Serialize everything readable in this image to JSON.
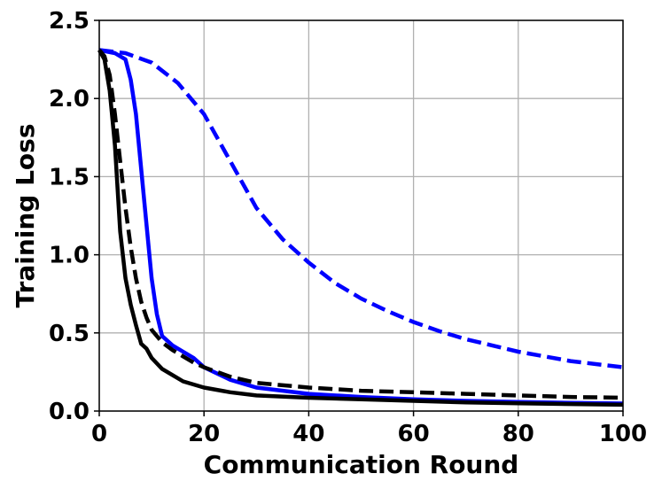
{
  "chart_data": {
    "type": "line",
    "title": "",
    "xlabel": "Communication Round",
    "ylabel": "Training Loss",
    "xlim": [
      0,
      100
    ],
    "ylim": [
      0,
      2.5
    ],
    "xticks": [
      0,
      20,
      40,
      60,
      80,
      100
    ],
    "xtick_labels": [
      "0",
      "20",
      "40",
      "60",
      "80",
      "100"
    ],
    "yticks": [
      0.0,
      0.5,
      1.0,
      1.5,
      2.0,
      2.5
    ],
    "ytick_labels": [
      "0.0",
      "0.5",
      "1.0",
      "1.5",
      "2.0",
      "2.5"
    ],
    "grid": true,
    "series": [
      {
        "color": "#0000ff",
        "style": "dashed",
        "x": [
          0,
          5,
          10,
          15,
          20,
          25,
          30,
          35,
          40,
          45,
          50,
          55,
          60,
          65,
          70,
          75,
          80,
          85,
          90,
          95,
          100
        ],
        "y": [
          2.31,
          2.29,
          2.23,
          2.1,
          1.9,
          1.6,
          1.3,
          1.1,
          0.95,
          0.82,
          0.72,
          0.64,
          0.57,
          0.51,
          0.46,
          0.42,
          0.38,
          0.35,
          0.32,
          0.3,
          0.28
        ]
      },
      {
        "color": "#0000ff",
        "style": "solid",
        "x": [
          0,
          3,
          5,
          6,
          7,
          8,
          9,
          10,
          11,
          12,
          14,
          16,
          18,
          20,
          25,
          30,
          40,
          50,
          60,
          70,
          80,
          90,
          100
        ],
        "y": [
          2.31,
          2.29,
          2.25,
          2.12,
          1.9,
          1.55,
          1.2,
          0.85,
          0.62,
          0.48,
          0.42,
          0.38,
          0.34,
          0.28,
          0.2,
          0.15,
          0.11,
          0.09,
          0.075,
          0.065,
          0.058,
          0.052,
          0.048
        ]
      },
      {
        "color": "#000000",
        "style": "dashed",
        "x": [
          0,
          1,
          2,
          3,
          4,
          5,
          6,
          7,
          8,
          9,
          10,
          12,
          14,
          16,
          18,
          20,
          25,
          30,
          40,
          50,
          60,
          70,
          80,
          90,
          100
        ],
        "y": [
          2.31,
          2.27,
          2.15,
          1.9,
          1.6,
          1.3,
          1.05,
          0.85,
          0.7,
          0.6,
          0.52,
          0.44,
          0.39,
          0.35,
          0.31,
          0.28,
          0.22,
          0.18,
          0.15,
          0.13,
          0.12,
          0.11,
          0.1,
          0.09,
          0.085
        ]
      },
      {
        "color": "#000000",
        "style": "solid",
        "x": [
          0,
          1,
          2,
          3,
          4,
          5,
          6,
          7,
          8,
          9,
          10,
          12,
          14,
          16,
          18,
          20,
          25,
          30,
          40,
          50,
          60,
          70,
          80,
          90,
          100
        ],
        "y": [
          2.31,
          2.25,
          2.05,
          1.7,
          1.15,
          0.85,
          0.68,
          0.55,
          0.43,
          0.4,
          0.34,
          0.27,
          0.23,
          0.19,
          0.17,
          0.15,
          0.12,
          0.1,
          0.085,
          0.075,
          0.065,
          0.055,
          0.05,
          0.045,
          0.04
        ]
      }
    ]
  }
}
